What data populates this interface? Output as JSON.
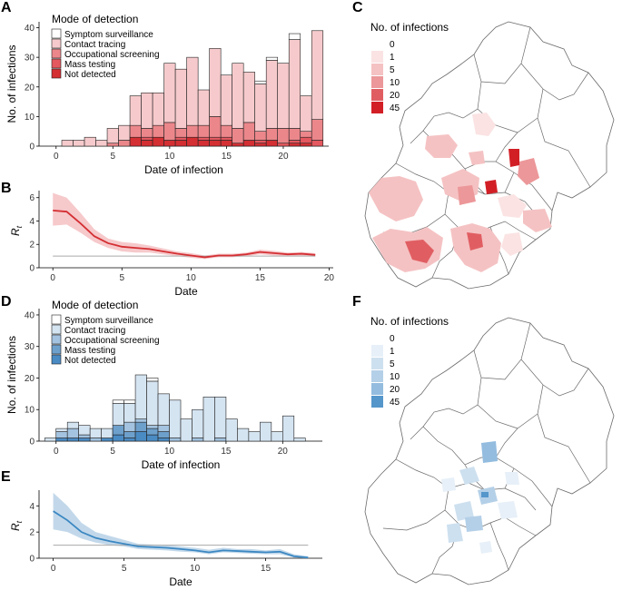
{
  "chart_data": [
    {
      "panel": "A",
      "type": "bar",
      "stacked": true,
      "xlabel": "Date of infection",
      "ylabel": "No. of infections",
      "xlim": [
        -1.5,
        24
      ],
      "ylim": [
        0,
        42
      ],
      "xticks": [
        0,
        5,
        10,
        15,
        20
      ],
      "yticks": [
        0,
        10,
        20,
        30,
        40
      ],
      "legend_title": "Mode of detection",
      "categories": [
        0,
        1,
        2,
        3,
        4,
        5,
        6,
        7,
        8,
        9,
        10,
        11,
        12,
        13,
        14,
        15,
        16,
        17,
        18,
        19,
        20,
        21,
        22,
        23
      ],
      "series": [
        {
          "name": "Not detected",
          "color": "#d42f33",
          "values": [
            0,
            0,
            0,
            0,
            0,
            0,
            0,
            3,
            2,
            3,
            2,
            2,
            3,
            2,
            2,
            2,
            1,
            2,
            1,
            2,
            0,
            1,
            1,
            0
          ]
        },
        {
          "name": "Mass testing",
          "color": "#e4585f",
          "values": [
            0,
            0,
            0,
            0,
            0,
            0,
            0,
            0,
            1,
            0,
            0,
            1,
            0,
            1,
            1,
            1,
            0,
            0,
            1,
            0,
            1,
            1,
            2,
            2
          ]
        },
        {
          "name": "Occupational screening",
          "color": "#eb878b",
          "values": [
            0,
            0,
            0,
            0,
            0,
            1,
            2,
            4,
            3,
            4,
            6,
            3,
            4,
            4,
            7,
            4,
            5,
            6,
            3,
            4,
            5,
            4,
            2,
            7
          ]
        },
        {
          "name": "Contact tracing",
          "color": "#f6cacc",
          "values": [
            0,
            2,
            2,
            3,
            2,
            5,
            5,
            10,
            12,
            11,
            20,
            20,
            23,
            12,
            23,
            17,
            22,
            17,
            16,
            23,
            22,
            30,
            12,
            30
          ]
        },
        {
          "name": "Symptom surveillance",
          "color": "#ffffff",
          "values": [
            0,
            0,
            0,
            0,
            0,
            0,
            0,
            0,
            0,
            0,
            0,
            0,
            0,
            0,
            0,
            0,
            0,
            0,
            1,
            1,
            0,
            2,
            0,
            0
          ]
        }
      ]
    },
    {
      "panel": "B",
      "type": "line",
      "band": true,
      "xlabel": "Date",
      "ylabel": "R_t",
      "xlim": [
        -1,
        20.3
      ],
      "ylim": [
        0,
        6.6
      ],
      "xticks": [
        0,
        5,
        10,
        15,
        20
      ],
      "yticks": [
        0,
        2,
        4,
        6
      ],
      "reference": 1,
      "color": "#d42f33",
      "band_color": "#f6c9cb",
      "x": [
        0,
        1,
        2,
        3,
        4,
        5,
        6,
        7,
        8,
        9,
        10,
        11,
        12,
        13,
        14,
        15,
        16,
        17,
        18,
        19
      ],
      "y": [
        4.9,
        4.8,
        3.8,
        2.7,
        2.1,
        1.8,
        1.7,
        1.6,
        1.4,
        1.2,
        1.05,
        0.9,
        1.05,
        1.05,
        1.15,
        1.35,
        1.25,
        1.15,
        1.2,
        1.1
      ],
      "lower": [
        3.6,
        3.7,
        3.0,
        2.2,
        1.7,
        1.4,
        1.3,
        1.3,
        1.15,
        1.0,
        0.85,
        0.75,
        0.9,
        0.9,
        1.0,
        1.15,
        1.05,
        1.0,
        1.05,
        0.95
      ],
      "upper": [
        6.4,
        6.0,
        4.7,
        3.3,
        2.5,
        2.2,
        2.1,
        1.9,
        1.65,
        1.4,
        1.25,
        1.05,
        1.2,
        1.2,
        1.3,
        1.55,
        1.45,
        1.3,
        1.35,
        1.25
      ]
    },
    {
      "panel": "D",
      "type": "bar",
      "stacked": true,
      "xlabel": "Date of infection",
      "ylabel": "No. of infections",
      "xlim": [
        -1.5,
        23.5
      ],
      "ylim": [
        0,
        42
      ],
      "xticks": [
        0,
        5,
        10,
        15,
        20
      ],
      "yticks": [
        0,
        10,
        20,
        30,
        40
      ],
      "legend_title": "Mode of detection",
      "categories": [
        -0.5,
        0.5,
        1.5,
        2.5,
        3.5,
        4.5,
        5.5,
        6.5,
        7.5,
        8.5,
        9.5,
        10.5,
        11.5,
        12.5,
        13.5,
        14.5,
        15.5,
        16.5,
        17.5,
        18.5,
        19.5,
        20.5,
        21.5
      ],
      "series": [
        {
          "name": "Not detected",
          "color": "#4a8bc4",
          "values": [
            0,
            1,
            1,
            1,
            0,
            1,
            2,
            1,
            3,
            2,
            1,
            0,
            0,
            0,
            0,
            0,
            0,
            0,
            0,
            0,
            0,
            0,
            0
          ]
        },
        {
          "name": "Mass testing",
          "color": "#6ea0cc",
          "values": [
            0,
            0,
            0,
            0,
            0,
            0,
            3,
            2,
            3,
            2,
            2,
            0,
            0,
            0,
            0,
            0,
            0,
            0,
            0,
            0,
            0,
            0,
            0
          ]
        },
        {
          "name": "Occupational screening",
          "color": "#a3c3e0",
          "values": [
            0,
            2,
            3,
            1,
            1,
            0,
            0,
            3,
            1,
            1,
            2,
            1,
            0,
            1,
            0,
            1,
            0,
            0,
            0,
            0,
            0,
            0,
            0
          ]
        },
        {
          "name": "Contact tracing",
          "color": "#d5e4f1",
          "values": [
            1,
            1,
            2,
            3,
            3,
            3,
            7,
            6,
            14,
            14,
            10,
            12,
            7,
            9,
            14,
            13,
            7,
            4,
            3,
            6,
            3,
            8,
            1
          ]
        },
        {
          "name": "Symptom surveillance",
          "color": "#ffffff",
          "values": [
            0,
            0,
            0,
            0,
            0,
            0,
            1,
            1,
            0,
            1,
            0,
            0,
            0,
            0,
            0,
            0,
            0,
            0,
            0,
            0,
            0,
            0,
            0
          ]
        }
      ]
    },
    {
      "panel": "E",
      "type": "line",
      "band": true,
      "xlabel": "Date",
      "ylabel": "R_t",
      "xlim": [
        -1,
        19
      ],
      "ylim": [
        0,
        5.2
      ],
      "xticks": [
        0,
        5,
        10,
        15
      ],
      "yticks": [
        0,
        2,
        4
      ],
      "reference": 1,
      "color": "#3b87c2",
      "band_color": "#c2d8ea",
      "x": [
        0,
        1,
        2,
        3,
        4,
        5,
        6,
        7,
        8,
        9,
        10,
        11,
        12,
        13,
        14,
        15,
        16,
        17,
        18
      ],
      "y": [
        3.6,
        2.9,
        2.0,
        1.55,
        1.3,
        1.1,
        0.9,
        0.85,
        0.8,
        0.7,
        0.6,
        0.45,
        0.6,
        0.55,
        0.5,
        0.45,
        0.5,
        0.15,
        0.05
      ],
      "lower": [
        2.2,
        2.0,
        1.5,
        1.2,
        1.0,
        0.9,
        0.7,
        0.65,
        0.6,
        0.5,
        0.45,
        0.3,
        0.45,
        0.4,
        0.35,
        0.3,
        0.3,
        0.05,
        0.0
      ],
      "upper": [
        5.0,
        4.0,
        2.7,
        2.0,
        1.7,
        1.4,
        1.1,
        1.05,
        1.0,
        0.9,
        0.8,
        0.65,
        0.8,
        0.7,
        0.7,
        0.6,
        0.7,
        0.3,
        0.15
      ]
    }
  ],
  "maps": [
    {
      "panel": "C",
      "legend_title": "No. of infections",
      "scale": [
        "0",
        "1",
        "5",
        "10",
        "20",
        "45"
      ],
      "colors": [
        "#ffffff",
        "#fbe3e3",
        "#f5c2c3",
        "#ec9799",
        "#e05e62",
        "#d21f26"
      ]
    },
    {
      "panel": "F",
      "legend_title": "No. of infections",
      "scale": [
        "0",
        "1",
        "5",
        "10",
        "20",
        "45"
      ],
      "colors": [
        "#ffffff",
        "#e7f0f8",
        "#cde0ef",
        "#b4d0e8",
        "#93bcdf",
        "#5596cb"
      ]
    }
  ],
  "panel_labels": [
    "A",
    "B",
    "C",
    "D",
    "E",
    "F"
  ]
}
